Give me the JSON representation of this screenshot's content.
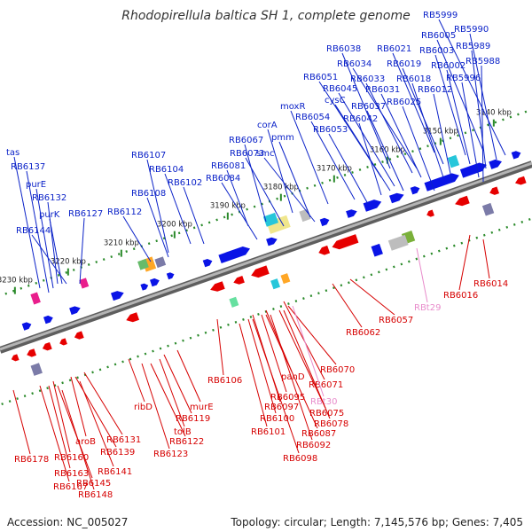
{
  "title": "Rhodopirellula baltica SH 1, complete genome",
  "footer": {
    "accession": "Accession: NC_005027",
    "summary": "Topology: circular; Length: 7,145,576 bp; Genes: 7,405"
  },
  "colors": {
    "forward": "#0a14e6",
    "reverse": "#e60000",
    "rna": "#e88ccb",
    "backbone": "#8a8a8a",
    "tick": "#2a8a2a"
  },
  "scale_labels": [
    "3140 kbp",
    "3150 kbp",
    "3160 kbp",
    "3170 kbp",
    "3180 kbp",
    "3190 kbp",
    "3200 kbp",
    "3210 kbp",
    "3220 kbp",
    "3230 kbp"
  ],
  "top_labels": [
    "RB5999",
    "RB6005",
    "RB5990",
    "RB6003",
    "RB5989",
    "RB6021",
    "RB6038",
    "RB5988",
    "RB6019",
    "RB6002",
    "RB6034",
    "RB6018",
    "RB5996",
    "RB6051",
    "RB6033",
    "RB6012",
    "RB6045",
    "RB6031",
    "cysC",
    "RB6037",
    "RB6025",
    "moxR",
    "RB6054",
    "RB6042",
    "corA",
    "RB6053",
    "pmm",
    "RB6067",
    "RB6073",
    "smc",
    "RB6107",
    "RB6104",
    "RB6081",
    "RB6102",
    "RB6084",
    "RB6108",
    "RB6112",
    "RB6127",
    "tas",
    "RB6137",
    "purE",
    "RB6132",
    "purK",
    "RB6144"
  ],
  "bottom_labels": [
    "RB6014",
    "RB6016",
    "RBt29",
    "RB6057",
    "RB6062",
    "RB6070",
    "RB6071",
    "RB6106",
    "panD",
    "RB6095",
    "RBt30",
    "RB6097",
    "RB6075",
    "RB6100",
    "RB6078",
    "RB6101",
    "RB6087",
    "RB6092",
    "RB6098",
    "ribD",
    "murE",
    "RB6119",
    "tolB",
    "RB6122",
    "RB6123",
    "RB6131",
    "aroB",
    "RB6139",
    "RB6141",
    "RB6160",
    "RB6145",
    "RB6163",
    "RB6148",
    "RB6167",
    "RB6178"
  ]
}
